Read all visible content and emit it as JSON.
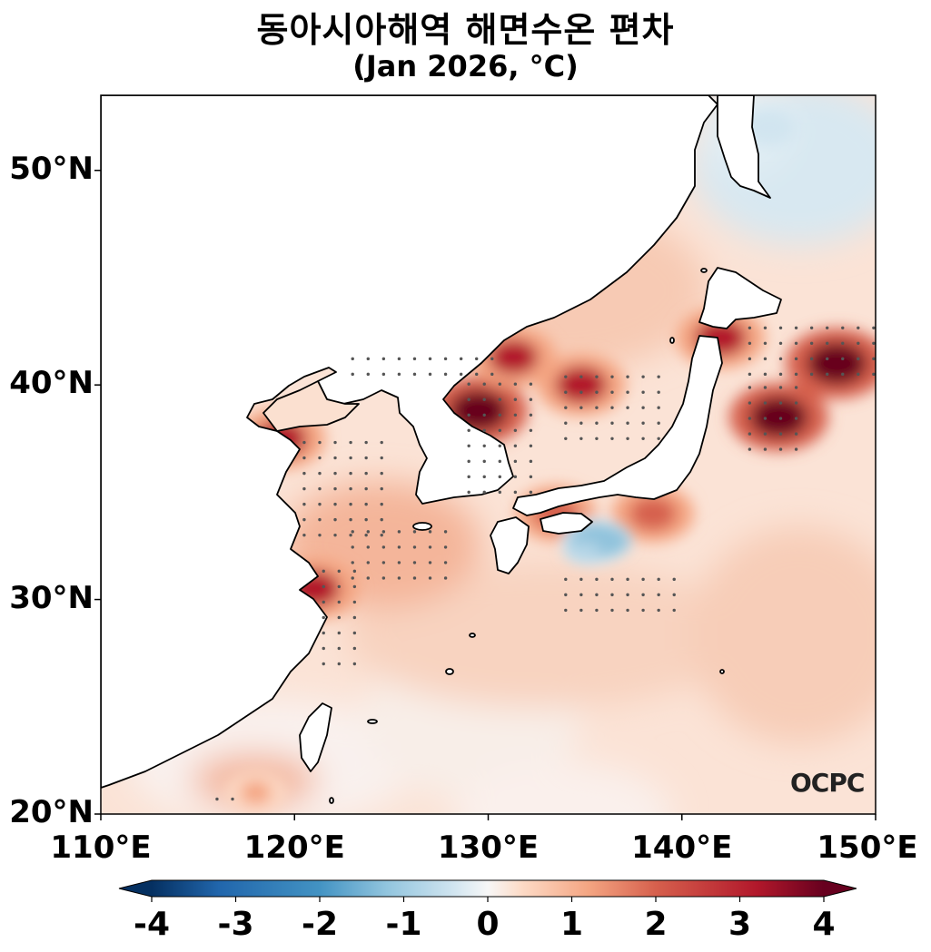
{
  "title": "동아시아해역 해면수온 편차",
  "subtitle": "(Jan 2026, °C)",
  "logo_text": "OCPC",
  "y_ticks": [
    {
      "label": "50°N",
      "lat": 50
    },
    {
      "label": "40°N",
      "lat": 40
    },
    {
      "label": "30°N",
      "lat": 30
    },
    {
      "label": "20°N",
      "lat": 20
    }
  ],
  "x_ticks": [
    {
      "label": "110°E",
      "lon": 110
    },
    {
      "label": "120°E",
      "lon": 120
    },
    {
      "label": "130°E",
      "lon": 130
    },
    {
      "label": "140°E",
      "lon": 140
    },
    {
      "label": "150°E",
      "lon": 150
    }
  ],
  "extent": {
    "lon": [
      110,
      150
    ],
    "lat": [
      20,
      53.5
    ]
  },
  "colorbar": {
    "ticks": [
      "-4",
      "-3",
      "-2",
      "-1",
      "0",
      "1",
      "2",
      "3",
      "4"
    ],
    "range": [
      -4,
      4
    ],
    "colormap": "RdBu_r",
    "extend": "both",
    "colors": [
      "#053061",
      "#2166ac",
      "#4393c3",
      "#92c5de",
      "#d1e5f0",
      "#f7f7f7",
      "#fddbc7",
      "#f4a582",
      "#d6604d",
      "#b2182b",
      "#67001f"
    ]
  },
  "land_color": "#ffffff",
  "anomaly_hotspots": [
    {
      "lon": 145.0,
      "lat": 38.5,
      "value": 3.6
    },
    {
      "lon": 148.0,
      "lat": 41.0,
      "value": 3.8
    },
    {
      "lon": 129.5,
      "lat": 38.8,
      "value": 3.6
    },
    {
      "lon": 134.8,
      "lat": 40.0,
      "value": 3.0
    },
    {
      "lon": 131.3,
      "lat": 41.3,
      "value": 2.8
    },
    {
      "lon": 119.3,
      "lat": 37.5,
      "value": 3.0
    },
    {
      "lon": 121.0,
      "lat": 30.5,
      "value": 3.0
    },
    {
      "lon": 138.5,
      "lat": 34.0,
      "value": 2.6
    },
    {
      "lon": 133.5,
      "lat": 34.0,
      "value": 2.5
    },
    {
      "lon": 142.0,
      "lat": 42.2,
      "value": 3.0
    },
    {
      "lon": 135.5,
      "lat": 32.7,
      "value": -1.4
    },
    {
      "lon": 144.5,
      "lat": 52.0,
      "value": -0.8
    },
    {
      "lon": 118.0,
      "lat": 21.0,
      "value": 1.3
    }
  ]
}
